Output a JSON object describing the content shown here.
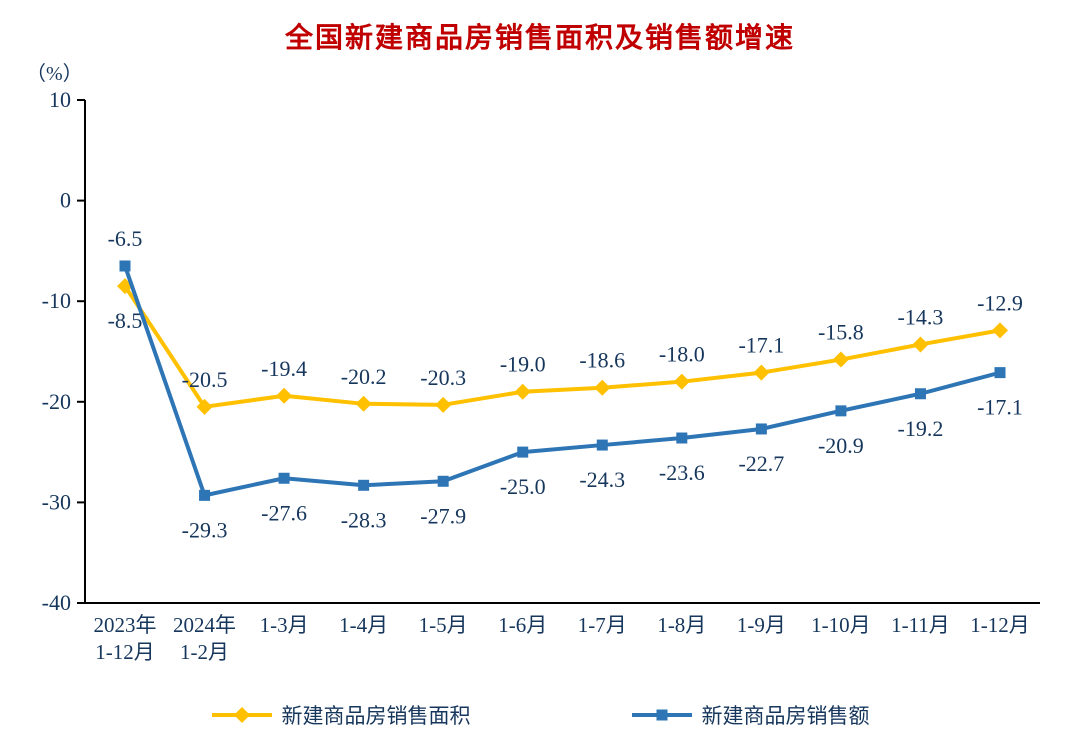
{
  "chart_data": {
    "type": "line",
    "title": "全国新建商品房销售面积及销售额增速",
    "ylabel": "（%）",
    "categories": [
      "2023年\n1-12月",
      "2024年\n1-2月",
      "1-3月",
      "1-4月",
      "1-5月",
      "1-6月",
      "1-7月",
      "1-8月",
      "1-9月",
      "1-10月",
      "1-11月",
      "1-12月"
    ],
    "series": [
      {
        "name": "新建商品房销售面积",
        "marker": "diamond",
        "color": "#FFC000",
        "values": [
          -8.5,
          -20.5,
          -19.4,
          -20.2,
          -20.3,
          -19.0,
          -18.6,
          -18.0,
          -17.1,
          -15.8,
          -14.3,
          -12.9
        ]
      },
      {
        "name": "新建商品房销售额",
        "marker": "square",
        "color": "#2E75B6",
        "values": [
          -6.5,
          -29.3,
          -27.6,
          -28.3,
          -27.9,
          -25.0,
          -24.3,
          -23.6,
          -22.7,
          -20.9,
          -19.2,
          -17.1
        ]
      }
    ],
    "ylim": [
      -40,
      10
    ],
    "yticks": [
      10,
      0,
      -10,
      -20,
      -30,
      -40
    ],
    "grid": false,
    "legend_position": "bottom",
    "title_color": "#C00000",
    "label_color": "#16365C",
    "axis_color": "#000000"
  }
}
